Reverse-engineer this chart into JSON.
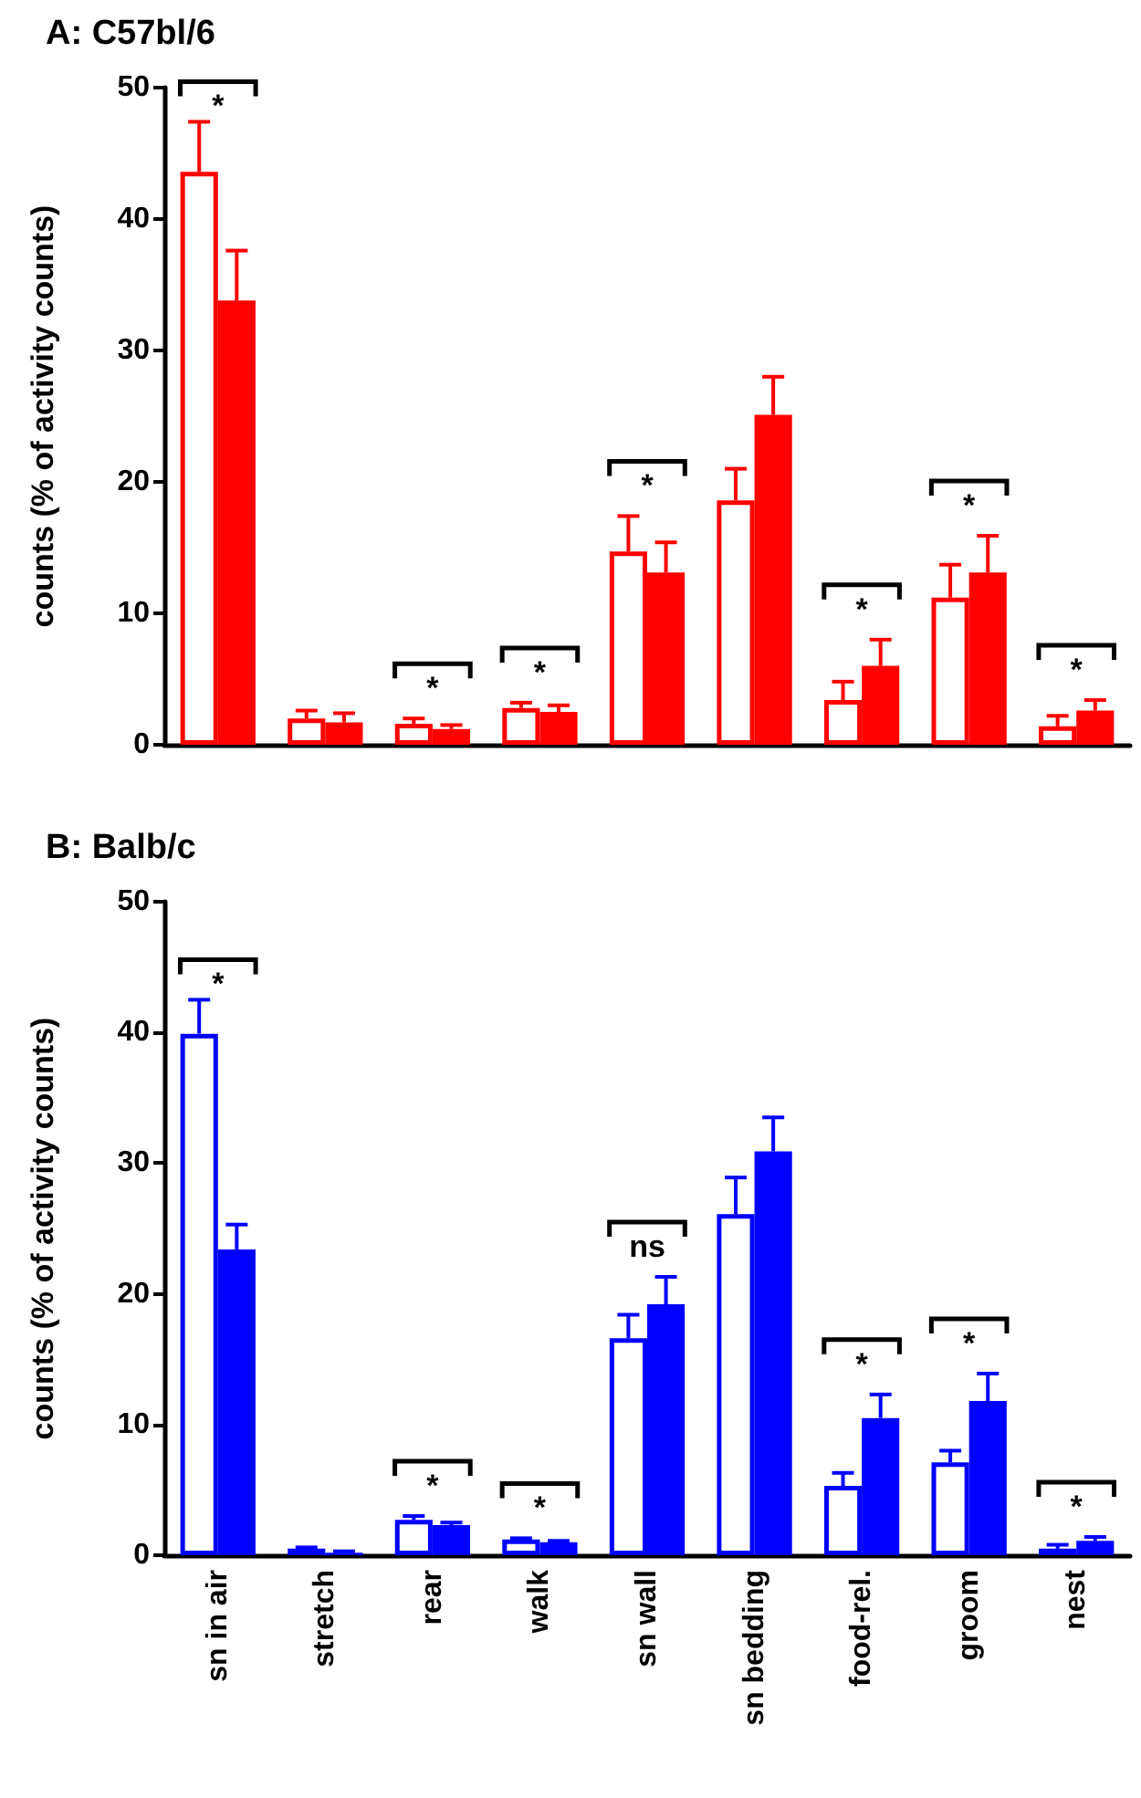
{
  "chart_data": [
    {
      "type": "bar",
      "title": "A: C57bl/6",
      "ylabel": "counts (% of activity counts)",
      "categories": [
        null,
        null,
        null,
        null,
        null,
        null,
        null,
        null,
        null
      ],
      "series": [
        {
          "color": "#ff0000",
          "values": [
            43.6,
            2.0,
            1.6,
            2.8,
            14.7,
            18.6,
            3.4,
            11.2,
            1.4
          ],
          "errors": [
            3.8,
            0.6,
            0.4,
            0.4,
            2.7,
            2.4,
            1.4,
            2.5,
            0.8
          ]
        },
        {
          "color": "#ff0000",
          "values": [
            33.8,
            1.7,
            1.2,
            2.5,
            13.1,
            25.1,
            6.0,
            13.1,
            2.6
          ],
          "errors": [
            3.8,
            0.7,
            0.3,
            0.5,
            2.3,
            2.9,
            2.0,
            2.8,
            0.8
          ]
        }
      ],
      "ylim": [
        0,
        50
      ],
      "yticks": [
        0,
        10,
        20,
        30,
        40,
        50
      ],
      "grid": false,
      "annotations": [
        "*",
        "*",
        "*",
        "*",
        "*",
        "*",
        "*"
      ]
    },
    {
      "type": "bar",
      "title": "B: Balb/c",
      "ylabel": "counts (% of activity counts)",
      "categories": [
        "sn in air",
        "stretch",
        "rear",
        "walk",
        "sn wall",
        "sn bedding",
        "food-rel.",
        "groom",
        "nest"
      ],
      "series": [
        {
          "color": "#0000ff",
          "values": [
            39.9,
            0.5,
            2.7,
            1.2,
            16.6,
            26.1,
            5.3,
            7.1,
            0.5
          ],
          "errors": [
            2.6,
            0.1,
            0.3,
            0.1,
            1.8,
            2.8,
            1.0,
            0.9,
            0.3
          ]
        },
        {
          "color": "#0000ff",
          "values": [
            23.4,
            0.2,
            2.3,
            1.0,
            19.2,
            30.9,
            10.5,
            11.8,
            1.1
          ],
          "errors": [
            1.9,
            0.1,
            0.2,
            0.1,
            2.1,
            2.6,
            1.8,
            2.1,
            0.3
          ]
        }
      ],
      "ylim": [
        0,
        50
      ],
      "yticks": [
        0,
        10,
        20,
        30,
        40,
        50
      ],
      "grid": false,
      "annotations": [
        "*",
        "*",
        "*",
        "ns",
        "*",
        "*",
        "*"
      ]
    }
  ]
}
